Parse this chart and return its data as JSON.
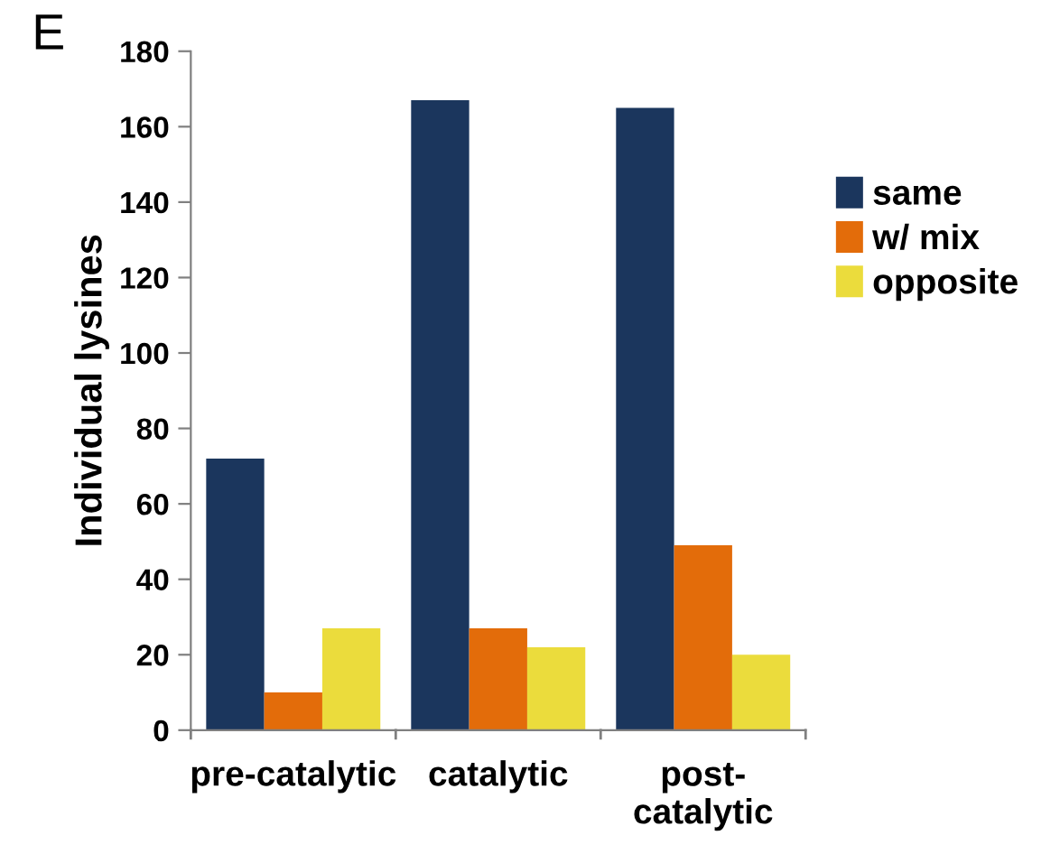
{
  "chart_data": {
    "type": "bar",
    "ylabel": "Individual lysines",
    "annotations": [
      "E"
    ],
    "categories": [
      "pre-catalytic",
      "catalytic",
      "post-\ncatalytic"
    ],
    "series": [
      {
        "name": "same",
        "color": "#1b365d",
        "values": [
          72,
          167,
          165
        ]
      },
      {
        "name": "w/ mix",
        "color": "#e36c0a",
        "values": [
          10,
          27,
          49
        ]
      },
      {
        "name": "opposite",
        "color": "#ebdc3c",
        "values": [
          27,
          22,
          20
        ]
      }
    ],
    "ylim": [
      0,
      180
    ],
    "yticks": [
      0,
      20,
      40,
      60,
      80,
      100,
      120,
      140,
      160,
      180
    ],
    "grid": false,
    "legend": "top right"
  }
}
